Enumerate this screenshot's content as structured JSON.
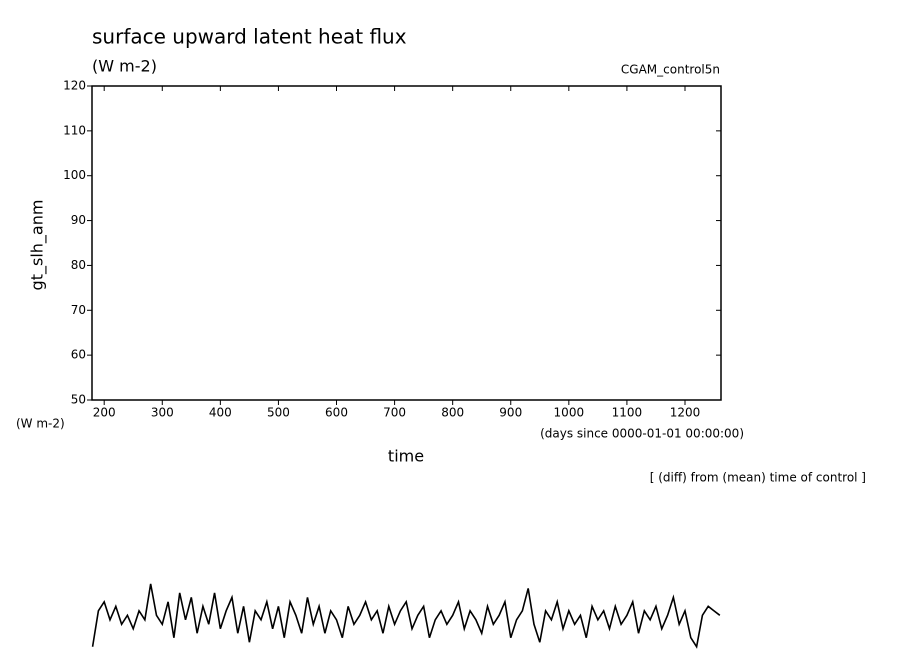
{
  "chart_data": {
    "type": "line",
    "title": "surface upward latent heat flux",
    "subtitle": "(W m-2)",
    "run_label": "CGAM_control5n",
    "y_axis_label": "gt_slh_anm",
    "y_units": "(W m-2)",
    "x_units": "(days since 0000-01-01 00:00:00)",
    "x_axis_label": "time",
    "note": "[ (diff) from (mean) time of control ]",
    "xlim": [
      179,
      1262
    ],
    "ylim": [
      50,
      120
    ],
    "xticks": [
      200,
      300,
      400,
      500,
      600,
      700,
      800,
      900,
      1000,
      1100,
      1200
    ],
    "yticks": [
      50,
      60,
      70,
      80,
      90,
      100,
      110,
      120
    ],
    "x": [
      180,
      190,
      200,
      210,
      220,
      230,
      240,
      250,
      260,
      270,
      280,
      290,
      300,
      310,
      320,
      330,
      340,
      350,
      360,
      370,
      380,
      390,
      400,
      410,
      420,
      430,
      440,
      450,
      460,
      470,
      480,
      490,
      500,
      510,
      520,
      530,
      540,
      550,
      560,
      570,
      580,
      590,
      600,
      610,
      620,
      630,
      640,
      650,
      660,
      670,
      680,
      690,
      700,
      710,
      720,
      730,
      740,
      750,
      760,
      770,
      780,
      790,
      800,
      810,
      820,
      830,
      840,
      850,
      860,
      870,
      880,
      890,
      900,
      910,
      920,
      930,
      940,
      950,
      960,
      970,
      980,
      990,
      1000,
      1010,
      1020,
      1030,
      1040,
      1050,
      1060,
      1070,
      1080,
      1090,
      1100,
      1110,
      1120,
      1130,
      1140,
      1150,
      1160,
      1170,
      1180,
      1190,
      1200,
      1210,
      1220,
      1230,
      1240,
      1250,
      1260
    ],
    "series": [
      {
        "color": "#000000",
        "values": [
          -5,
          3,
          5,
          1,
          4,
          0,
          2,
          -1,
          3,
          1,
          9,
          2,
          0,
          5,
          -3,
          7,
          1,
          6,
          -2,
          4,
          0,
          7,
          -1,
          3,
          6,
          -2,
          4,
          -4,
          3,
          1,
          5,
          -1,
          4,
          -3,
          5,
          2,
          -2,
          6,
          0,
          4,
          -2,
          3,
          1,
          -3,
          4,
          0,
          2,
          5,
          1,
          3,
          -2,
          4,
          0,
          3,
          5,
          -1,
          2,
          4,
          -3,
          1,
          3,
          0,
          2,
          5,
          -1,
          3,
          1,
          -2,
          4,
          0,
          2,
          5,
          -3,
          1,
          3,
          8,
          0,
          -4,
          3,
          1,
          5,
          -1,
          3,
          0,
          2,
          -3,
          4,
          1,
          3,
          -1,
          4,
          0,
          2,
          5,
          -2,
          3,
          1,
          4,
          -1,
          2,
          6,
          0,
          3,
          -3,
          -5,
          2,
          4,
          3,
          2
        ]
      }
    ]
  }
}
